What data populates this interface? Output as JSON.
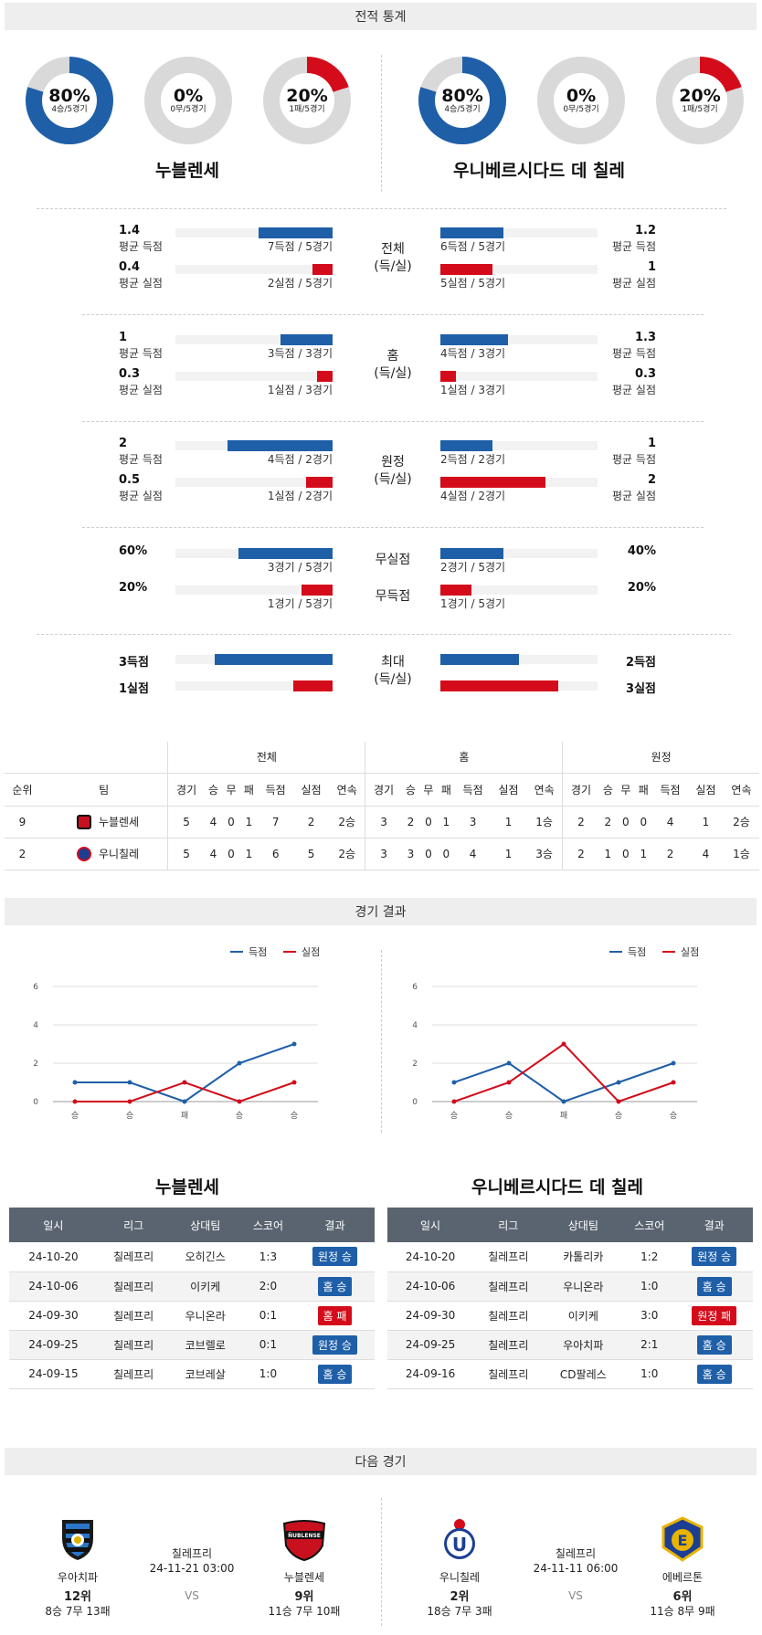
{
  "sections": {
    "stats_title": "전적 통계",
    "results_title": "경기 결과",
    "next_title": "다음 경기"
  },
  "colors": {
    "blue": "#1f5fa8",
    "red": "#d40b1a",
    "gray": "#d9d9d9"
  },
  "teams": {
    "home": {
      "name": "누블렌세",
      "short": "누블렌세"
    },
    "away": {
      "name": "우니베르시다드 데 칠레",
      "short": "우니칠레"
    }
  },
  "donuts": {
    "home": [
      {
        "pct": "80%",
        "sub": "4승/5경기",
        "value": 0.8,
        "color": "#1f5fa8"
      },
      {
        "pct": "0%",
        "sub": "0무/5경기",
        "value": 0,
        "color": "#1f5fa8"
      },
      {
        "pct": "20%",
        "sub": "1패/5경기",
        "value": 0.2,
        "color": "#d40b1a"
      }
    ],
    "away": [
      {
        "pct": "80%",
        "sub": "4승/5경기",
        "value": 0.8,
        "color": "#1f5fa8"
      },
      {
        "pct": "0%",
        "sub": "0무/5경기",
        "value": 0,
        "color": "#1f5fa8"
      },
      {
        "pct": "20%",
        "sub": "1패/5경기",
        "value": 0.2,
        "color": "#d40b1a"
      }
    ]
  },
  "stats": {
    "groups": [
      {
        "center": [
          "전체",
          "(득/실)"
        ],
        "left": [
          {
            "val": "1.4",
            "label": "평균 득점",
            "count": "7득점 / 5경기",
            "fill": 0.47
          },
          {
            "val": "0.4",
            "label": "평균 실점",
            "count": "2실점 / 5경기",
            "fill": 0.13
          }
        ],
        "right": [
          {
            "val": "1.2",
            "label": "평균 득점",
            "count": "6득점 / 5경기",
            "fill": 0.4
          },
          {
            "val": "1",
            "label": "평균 실점",
            "count": "5실점 / 5경기",
            "fill": 0.33
          }
        ]
      },
      {
        "center": [
          "홈",
          "(득/실)"
        ],
        "left": [
          {
            "val": "1",
            "label": "평균 득점",
            "count": "3득점 / 3경기",
            "fill": 0.33
          },
          {
            "val": "0.3",
            "label": "평균 실점",
            "count": "1실점 / 3경기",
            "fill": 0.1
          }
        ],
        "right": [
          {
            "val": "1.3",
            "label": "평균 득점",
            "count": "4득점 / 3경기",
            "fill": 0.43
          },
          {
            "val": "0.3",
            "label": "평균 실점",
            "count": "1실점 / 3경기",
            "fill": 0.1
          }
        ]
      },
      {
        "center": [
          "원정",
          "(득/실)"
        ],
        "left": [
          {
            "val": "2",
            "label": "평균 득점",
            "count": "4득점 / 2경기",
            "fill": 0.67
          },
          {
            "val": "0.5",
            "label": "평균 실점",
            "count": "1실점 / 2경기",
            "fill": 0.17
          }
        ],
        "right": [
          {
            "val": "1",
            "label": "평균 득점",
            "count": "2득점 / 2경기",
            "fill": 0.33
          },
          {
            "val": "2",
            "label": "평균 실점",
            "count": "4실점 / 2경기",
            "fill": 0.67
          }
        ]
      }
    ],
    "clean": {
      "center1": "무실점",
      "center2": "무득점",
      "left": [
        {
          "val": "60%",
          "count": "3경기 / 5경기",
          "fill": 0.6
        },
        {
          "val": "20%",
          "count": "1경기 / 5경기",
          "fill": 0.2
        }
      ],
      "right": [
        {
          "val": "40%",
          "count": "2경기 / 5경기",
          "fill": 0.4
        },
        {
          "val": "20%",
          "count": "1경기 / 5경기",
          "fill": 0.2
        }
      ]
    },
    "max": {
      "center": [
        "최대",
        "(득/실)"
      ],
      "left": [
        {
          "val": "3득점",
          "fill": 0.75
        },
        {
          "val": "1실점",
          "fill": 0.25
        }
      ],
      "right": [
        {
          "val": "2득점",
          "fill": 0.5
        },
        {
          "val": "3실점",
          "fill": 0.75
        }
      ]
    }
  },
  "standings": {
    "groups": [
      "전체",
      "홈",
      "원정"
    ],
    "head": [
      "순위",
      "팀",
      "경기",
      "승",
      "무",
      "패",
      "득점",
      "실점",
      "연속",
      "경기",
      "승",
      "무",
      "패",
      "득점",
      "실점",
      "연속",
      "경기",
      "승",
      "무",
      "패",
      "득점",
      "실점",
      "연속"
    ],
    "rows": [
      [
        "9",
        "누블렌세",
        "5",
        "4",
        "0",
        "1",
        "7",
        "2",
        "2승",
        "3",
        "2",
        "0",
        "1",
        "3",
        "1",
        "1승",
        "2",
        "2",
        "0",
        "0",
        "4",
        "1",
        "2승"
      ],
      [
        "2",
        "우니칠레",
        "5",
        "4",
        "0",
        "1",
        "6",
        "5",
        "2승",
        "3",
        "3",
        "0",
        "0",
        "4",
        "1",
        "3승",
        "2",
        "1",
        "0",
        "1",
        "2",
        "4",
        "1승"
      ]
    ]
  },
  "chart_data": [
    {
      "type": "line",
      "categories": [
        "승",
        "승",
        "패",
        "승",
        "승"
      ],
      "ylim": [
        0,
        6
      ],
      "yticks": [
        0,
        2,
        4,
        6
      ],
      "series": [
        {
          "name": "득점",
          "values": [
            1,
            1,
            0,
            2,
            3
          ],
          "color": "#1f5fa8"
        },
        {
          "name": "실점",
          "values": [
            0,
            0,
            1,
            0,
            1
          ],
          "color": "#d40b1a"
        }
      ]
    },
    {
      "type": "line",
      "categories": [
        "승",
        "승",
        "패",
        "승",
        "승"
      ],
      "ylim": [
        0,
        6
      ],
      "yticks": [
        0,
        2,
        4,
        6
      ],
      "series": [
        {
          "name": "득점",
          "values": [
            1,
            2,
            0,
            1,
            2
          ],
          "color": "#1f5fa8"
        },
        {
          "name": "실점",
          "values": [
            0,
            1,
            3,
            0,
            1
          ],
          "color": "#d40b1a"
        }
      ]
    }
  ],
  "results": {
    "head": [
      "일시",
      "리그",
      "상대팀",
      "스코어",
      "결과"
    ],
    "home": [
      [
        "24-10-20",
        "칠레프리",
        "오히긴스",
        "1:3",
        "원정 승",
        "#1f5fa8"
      ],
      [
        "24-10-06",
        "칠레프리",
        "이키케",
        "2:0",
        "홈 승",
        "#1f5fa8"
      ],
      [
        "24-09-30",
        "칠레프리",
        "우니온라",
        "0:1",
        "홈 패",
        "#d40b1a"
      ],
      [
        "24-09-25",
        "칠레프리",
        "코브렐로",
        "0:1",
        "원정 승",
        "#1f5fa8"
      ],
      [
        "24-09-15",
        "칠레프리",
        "코브레살",
        "1:0",
        "홈 승",
        "#1f5fa8"
      ]
    ],
    "away": [
      [
        "24-10-20",
        "칠레프리",
        "카톨리카",
        "1:2",
        "원정 승",
        "#1f5fa8"
      ],
      [
        "24-10-06",
        "칠레프리",
        "우니온라",
        "1:0",
        "홈 승",
        "#1f5fa8"
      ],
      [
        "24-09-30",
        "칠레프리",
        "이키케",
        "3:0",
        "원정 패",
        "#d40b1a"
      ],
      [
        "24-09-25",
        "칠레프리",
        "우아치파",
        "2:1",
        "홈 승",
        "#1f5fa8"
      ],
      [
        "24-09-16",
        "칠레프리",
        "CD팔레스",
        "1:0",
        "홈 승",
        "#1f5fa8"
      ]
    ]
  },
  "next": [
    {
      "team_a": {
        "name": "우아치파",
        "rank": "12위",
        "record": "8승 7무 13패"
      },
      "league": "칠레프리",
      "datetime": "24-11-21 03:00",
      "vs": "VS",
      "team_b": {
        "name": "누블렌세",
        "rank": "9위",
        "record": "11승 7무 10패",
        "badge_text": "ÑUBLENSE"
      }
    },
    {
      "team_a": {
        "name": "우니칠레",
        "rank": "2위",
        "record": "18승 7무 3패"
      },
      "league": "칠레프리",
      "datetime": "24-11-11 06:00",
      "vs": "VS",
      "team_b": {
        "name": "에베르톤",
        "rank": "6위",
        "record": "11승 8무 9패"
      }
    }
  ]
}
